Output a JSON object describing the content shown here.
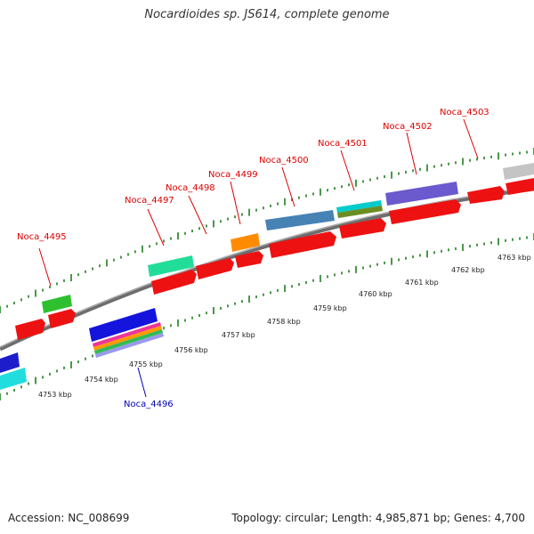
{
  "title": "Nocardioides sp. JS614, complete genome",
  "footer": {
    "accession": "Accession: NC_008699",
    "summary": "Topology: circular; Length: 4,985,871 bp; Genes: 4,700"
  },
  "colors": {
    "label_forward": "#dd0000",
    "label_reverse": "#0000bb",
    "backbone": "#8a8a8a",
    "tick": "#1e7d1e",
    "cds": "#ee1111"
  },
  "scale": {
    "unit": "kbp",
    "labels": [
      "4753 kbp",
      "4754 kbp",
      "4755 kbp",
      "4756 kbp",
      "4757 kbp",
      "4758 kbp",
      "4759 kbp",
      "4760 kbp",
      "4761 kbp",
      "4762 kbp",
      "4763 kbp"
    ]
  },
  "gene_labels": [
    {
      "text": "Noca_4495",
      "strand": "forward"
    },
    {
      "text": "Noca_4496",
      "strand": "reverse"
    },
    {
      "text": "Noca_4497",
      "strand": "forward"
    },
    {
      "text": "Noca_4498",
      "strand": "forward"
    },
    {
      "text": "Noca_4499",
      "strand": "forward"
    },
    {
      "text": "Noca_4500",
      "strand": "forward"
    },
    {
      "text": "Noca_4501",
      "strand": "forward"
    },
    {
      "text": "Noca_4502",
      "strand": "forward"
    },
    {
      "text": "Noca_4503",
      "strand": "forward"
    }
  ]
}
